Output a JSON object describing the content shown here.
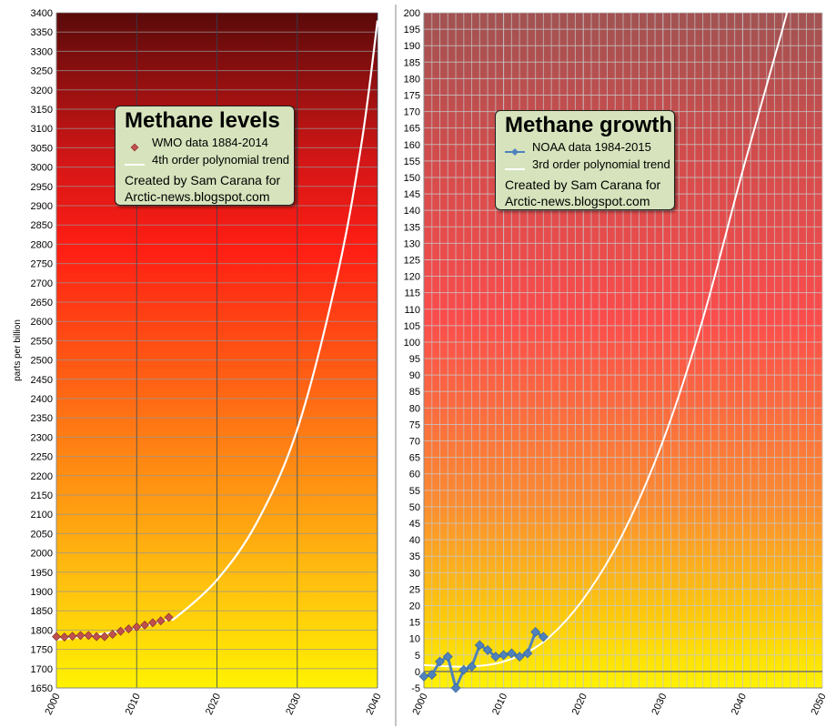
{
  "chart_data": [
    {
      "type": "scatter",
      "title": "Methane levels",
      "ylabel": "parts per billion",
      "xlabel": "",
      "xlim": [
        2000,
        2040
      ],
      "ylim": [
        1650,
        3400
      ],
      "y_ticks": [
        1650,
        1700,
        1750,
        1800,
        1850,
        1900,
        1950,
        2000,
        2050,
        2100,
        2150,
        2200,
        2250,
        2300,
        2350,
        2400,
        2450,
        2500,
        2550,
        2600,
        2650,
        2700,
        2750,
        2800,
        2850,
        2900,
        2950,
        3000,
        3050,
        3100,
        3150,
        3200,
        3250,
        3300,
        3350,
        3400
      ],
      "x_ticks": [
        2000,
        2010,
        2020,
        2030,
        2040
      ],
      "grid": true,
      "legend": [
        "WMO data 1884-2014",
        "4th order polynomial trend"
      ],
      "annotation_lines": [
        "Created by Sam Carana for",
        "Arctic-news.blogspot.com"
      ],
      "series": [
        {
          "name": "WMO data 1884-2014",
          "kind": "markers",
          "color": "#c0504d",
          "x": [
            2000,
            2001,
            2002,
            2003,
            2004,
            2005,
            2006,
            2007,
            2008,
            2009,
            2010,
            2011,
            2012,
            2013,
            2014
          ],
          "y": [
            1783,
            1782,
            1784,
            1786,
            1786,
            1783,
            1783,
            1789,
            1797,
            1803,
            1808,
            1813,
            1819,
            1824,
            1833
          ]
        },
        {
          "name": "4th order polynomial trend",
          "kind": "curve",
          "color": "#ffffff",
          "x": [
            2000,
            2005,
            2010,
            2014,
            2015,
            2020,
            2025,
            2030,
            2035,
            2038,
            2040
          ],
          "y": [
            1775,
            1788,
            1805,
            1828,
            1835,
            1930,
            2080,
            2320,
            2720,
            3060,
            3380
          ]
        }
      ]
    },
    {
      "type": "line",
      "title": "Methane growth",
      "ylabel": "",
      "xlabel": "",
      "xlim": [
        2000,
        2050
      ],
      "ylim": [
        -5,
        200
      ],
      "y_ticks": [
        -5,
        0,
        5,
        10,
        15,
        20,
        25,
        30,
        35,
        40,
        45,
        50,
        55,
        60,
        65,
        70,
        75,
        80,
        85,
        90,
        95,
        100,
        105,
        110,
        115,
        120,
        125,
        130,
        135,
        140,
        145,
        150,
        155,
        160,
        165,
        170,
        175,
        180,
        185,
        190,
        195,
        200
      ],
      "x_ticks": [
        2000,
        2010,
        2020,
        2030,
        2040,
        2050
      ],
      "grid": true,
      "legend": [
        "NOAA data 1984-2015",
        "3rd order polynomial trend"
      ],
      "annotation_lines": [
        "Created by Sam Carana for",
        "Arctic-news.blogspot.com"
      ],
      "series": [
        {
          "name": "NOAA data 1984-2015",
          "kind": "line-markers",
          "color": "#4f81bd",
          "x": [
            2000,
            2001,
            2002,
            2003,
            2004,
            2005,
            2006,
            2007,
            2008,
            2009,
            2010,
            2011,
            2012,
            2013,
            2014,
            2015
          ],
          "y": [
            -1.5,
            -1,
            3,
            4.5,
            -5,
            0.5,
            1.5,
            8,
            6.5,
            4.5,
            5,
            5.5,
            4.5,
            5.5,
            12,
            10.5
          ]
        },
        {
          "name": "3rd order polynomial trend",
          "kind": "curve",
          "color": "#ffffff",
          "x": [
            2000,
            2005,
            2010,
            2015,
            2020,
            2025,
            2030,
            2035,
            2040,
            2045,
            2045.5
          ],
          "y": [
            2,
            1.5,
            3,
            9,
            22,
            42,
            70,
            107,
            152,
            195,
            200
          ]
        }
      ]
    }
  ]
}
